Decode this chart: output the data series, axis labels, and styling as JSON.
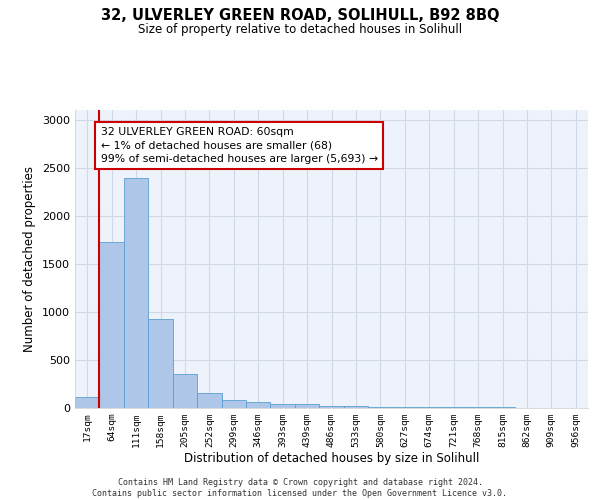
{
  "title_line1": "32, ULVERLEY GREEN ROAD, SOLIHULL, B92 8BQ",
  "title_line2": "Size of property relative to detached houses in Solihull",
  "xlabel": "Distribution of detached houses by size in Solihull",
  "ylabel": "Number of detached properties",
  "footer_line1": "Contains HM Land Registry data © Crown copyright and database right 2024.",
  "footer_line2": "Contains public sector information licensed under the Open Government Licence v3.0.",
  "bin_labels": [
    "17sqm",
    "64sqm",
    "111sqm",
    "158sqm",
    "205sqm",
    "252sqm",
    "299sqm",
    "346sqm",
    "393sqm",
    "439sqm",
    "486sqm",
    "533sqm",
    "580sqm",
    "627sqm",
    "674sqm",
    "721sqm",
    "768sqm",
    "815sqm",
    "862sqm",
    "909sqm",
    "956sqm"
  ],
  "bar_values": [
    110,
    1720,
    2390,
    920,
    345,
    155,
    75,
    55,
    35,
    35,
    20,
    15,
    10,
    5,
    3,
    2,
    1,
    1,
    0,
    0,
    0
  ],
  "bar_color": "#aec6e8",
  "bar_edge_color": "#5a9fd4",
  "annotation_text": "32 ULVERLEY GREEN ROAD: 60sqm\n← 1% of detached houses are smaller (68)\n99% of semi-detached houses are larger (5,693) →",
  "annotation_box_color": "#ffffff",
  "annotation_box_edge_color": "#cc0000",
  "marker_line_color": "#cc0000",
  "ylim": [
    0,
    3100
  ],
  "yticks": [
    0,
    500,
    1000,
    1500,
    2000,
    2500,
    3000
  ],
  "grid_color": "#d0d8e8",
  "background_color": "#eef2fb"
}
